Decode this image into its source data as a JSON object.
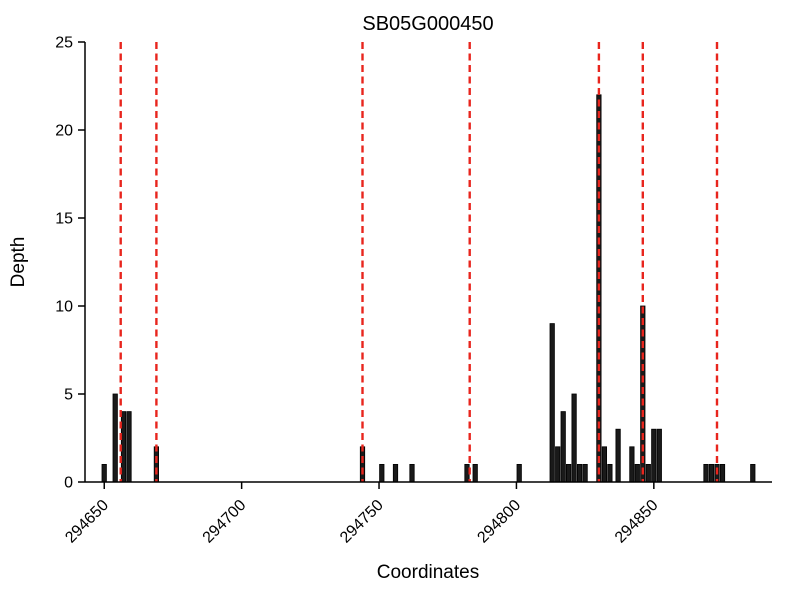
{
  "chart_data": {
    "type": "bar",
    "title": "SB05G000450",
    "xlabel": "Coordinates",
    "ylabel": "Depth",
    "xlim": [
      294643,
      294893
    ],
    "ylim": [
      0,
      25
    ],
    "yticks": [
      0,
      5,
      10,
      15,
      20,
      25
    ],
    "xticks": [
      294650,
      294700,
      294750,
      294800,
      294850
    ],
    "grid": false,
    "legend": "none",
    "bar_color": "#1a1a1a",
    "bar_edge_color": "#000000",
    "vline_color": "#e8251d",
    "axis_color": "#000000",
    "vlines": [
      294656,
      294669,
      294744,
      294783,
      294830,
      294846,
      294873
    ],
    "bars": [
      {
        "x": 294650,
        "h": 1
      },
      {
        "x": 294654,
        "h": 5
      },
      {
        "x": 294657,
        "h": 4
      },
      {
        "x": 294659,
        "h": 4
      },
      {
        "x": 294669,
        "h": 2
      },
      {
        "x": 294744,
        "h": 2
      },
      {
        "x": 294751,
        "h": 1
      },
      {
        "x": 294756,
        "h": 1
      },
      {
        "x": 294762,
        "h": 1
      },
      {
        "x": 294782,
        "h": 1
      },
      {
        "x": 294785,
        "h": 1
      },
      {
        "x": 294801,
        "h": 1
      },
      {
        "x": 294813,
        "h": 9
      },
      {
        "x": 294815,
        "h": 2
      },
      {
        "x": 294817,
        "h": 4
      },
      {
        "x": 294819,
        "h": 1
      },
      {
        "x": 294821,
        "h": 5
      },
      {
        "x": 294823,
        "h": 1
      },
      {
        "x": 294825,
        "h": 1
      },
      {
        "x": 294830,
        "h": 22
      },
      {
        "x": 294832,
        "h": 2
      },
      {
        "x": 294834,
        "h": 1
      },
      {
        "x": 294837,
        "h": 3
      },
      {
        "x": 294842,
        "h": 2
      },
      {
        "x": 294844,
        "h": 1
      },
      {
        "x": 294846,
        "h": 10
      },
      {
        "x": 294848,
        "h": 1
      },
      {
        "x": 294850,
        "h": 3
      },
      {
        "x": 294852,
        "h": 3
      },
      {
        "x": 294869,
        "h": 1
      },
      {
        "x": 294871,
        "h": 1
      },
      {
        "x": 294873,
        "h": 1
      },
      {
        "x": 294875,
        "h": 1
      },
      {
        "x": 294886,
        "h": 1
      }
    ]
  }
}
